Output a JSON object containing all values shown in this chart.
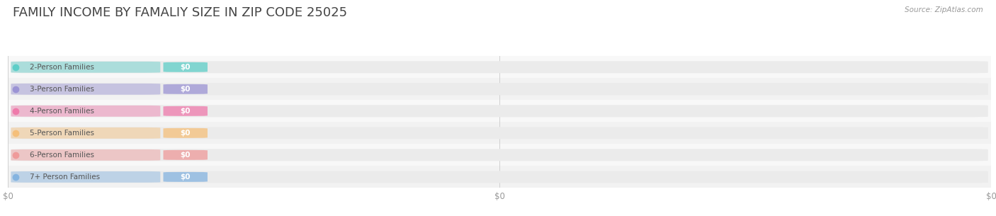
{
  "title": "FAMILY INCOME BY FAMALIY SIZE IN ZIP CODE 25025",
  "source": "Source: ZipAtlas.com",
  "categories": [
    "2-Person Families",
    "3-Person Families",
    "4-Person Families",
    "5-Person Families",
    "6-Person Families",
    "7+ Person Families"
  ],
  "values": [
    0,
    0,
    0,
    0,
    0,
    0
  ],
  "bar_colors": [
    "#5ecec8",
    "#9b93d4",
    "#ef7aab",
    "#f5bf7a",
    "#ef9a9a",
    "#85b4e0"
  ],
  "bg_color": "#ffffff",
  "title_fontsize": 13,
  "label_fontsize": 7.5,
  "source_fontsize": 7.5,
  "value_label": "$0",
  "xlim": [
    0,
    1
  ],
  "xtick_positions": [
    0.0,
    0.5,
    1.0
  ],
  "xtick_labels": [
    "$0",
    "$0",
    "$0"
  ]
}
